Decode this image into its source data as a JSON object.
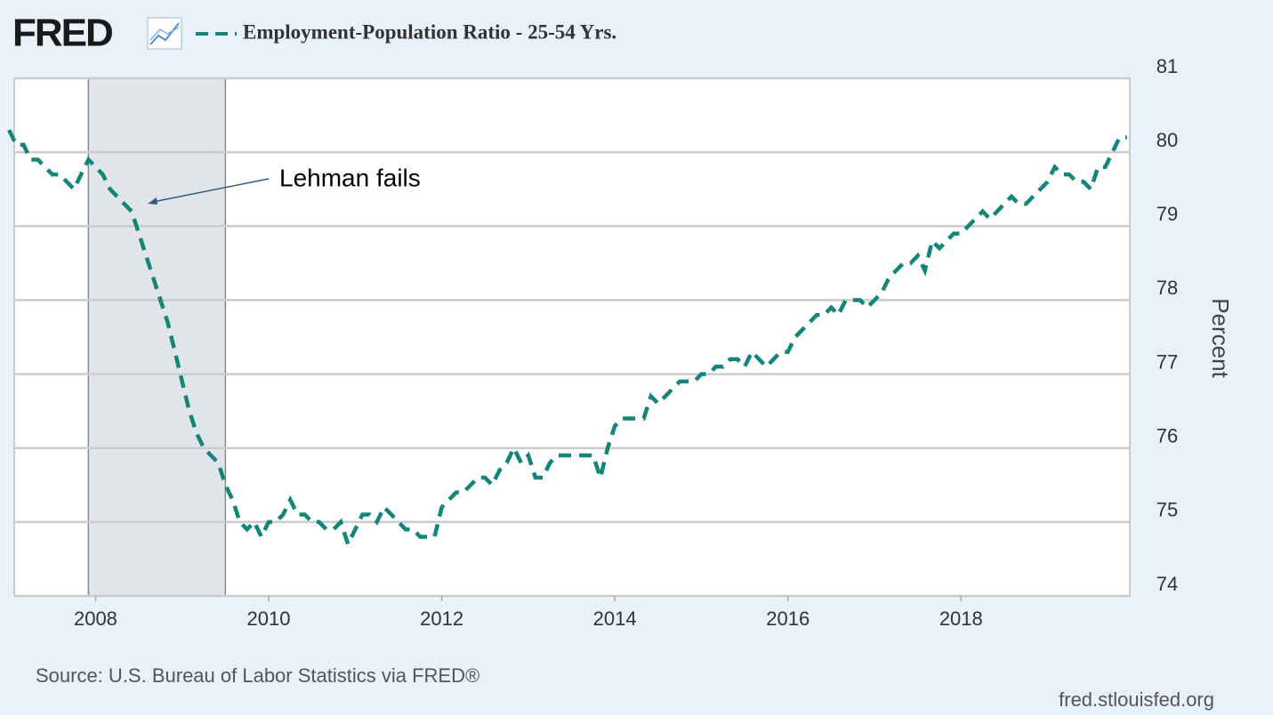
{
  "chart_data": {
    "type": "line",
    "logo": "FRED",
    "y_label": "Percent",
    "annotation": "Lehman fails",
    "source": "Source: U.S. Bureau of Labor Statistics via FRED®",
    "site": "fred.stlouisfed.org",
    "xlim": [
      2007.06,
      2019.95
    ],
    "xticks": [
      2008,
      2010,
      2012,
      2014,
      2016,
      2018
    ],
    "ylim": [
      74,
      81
    ],
    "yticks": [
      74,
      75,
      76,
      77,
      78,
      79,
      80,
      81
    ],
    "grid": true,
    "recessions": [
      {
        "start": 2007.917,
        "end": 2009.5
      }
    ],
    "x": [
      2007.0,
      2007.083,
      2007.167,
      2007.25,
      2007.333,
      2007.417,
      2007.5,
      2007.583,
      2007.667,
      2007.75,
      2007.833,
      2007.917,
      2008.0,
      2008.083,
      2008.167,
      2008.25,
      2008.333,
      2008.417,
      2008.5,
      2008.583,
      2008.667,
      2008.75,
      2008.833,
      2008.917,
      2009.0,
      2009.083,
      2009.167,
      2009.25,
      2009.333,
      2009.417,
      2009.5,
      2009.583,
      2009.667,
      2009.75,
      2009.833,
      2009.917,
      2010.0,
      2010.083,
      2010.167,
      2010.25,
      2010.333,
      2010.417,
      2010.5,
      2010.583,
      2010.667,
      2010.75,
      2010.833,
      2010.917,
      2011.0,
      2011.083,
      2011.167,
      2011.25,
      2011.333,
      2011.417,
      2011.5,
      2011.583,
      2011.667,
      2011.75,
      2011.833,
      2011.917,
      2012.0,
      2012.083,
      2012.167,
      2012.25,
      2012.333,
      2012.417,
      2012.5,
      2012.583,
      2012.667,
      2012.75,
      2012.833,
      2012.917,
      2013.0,
      2013.083,
      2013.167,
      2013.25,
      2013.333,
      2013.417,
      2013.5,
      2013.583,
      2013.667,
      2013.75,
      2013.833,
      2013.917,
      2014.0,
      2014.083,
      2014.167,
      2014.25,
      2014.333,
      2014.417,
      2014.5,
      2014.583,
      2014.667,
      2014.75,
      2014.833,
      2014.917,
      2015.0,
      2015.083,
      2015.167,
      2015.25,
      2015.333,
      2015.417,
      2015.5,
      2015.583,
      2015.667,
      2015.75,
      2015.833,
      2015.917,
      2016.0,
      2016.083,
      2016.167,
      2016.25,
      2016.333,
      2016.417,
      2016.5,
      2016.583,
      2016.667,
      2016.75,
      2016.833,
      2016.917,
      2017.0,
      2017.083,
      2017.167,
      2017.25,
      2017.333,
      2017.417,
      2017.5,
      2017.583,
      2017.667,
      2017.75,
      2017.833,
      2017.917,
      2018.0,
      2018.083,
      2018.167,
      2018.25,
      2018.333,
      2018.417,
      2018.5,
      2018.583,
      2018.667,
      2018.75,
      2018.833,
      2018.917,
      2019.0,
      2019.083,
      2019.167,
      2019.25,
      2019.333,
      2019.417,
      2019.5,
      2019.583,
      2019.667,
      2019.75,
      2019.833,
      2019.917
    ],
    "series": [
      {
        "name": "Employment-Population Ratio - 25-54 Yrs.",
        "color": "#14857a",
        "values": [
          80.3,
          80.1,
          80.1,
          79.9,
          79.9,
          79.8,
          79.7,
          79.7,
          79.6,
          79.5,
          79.7,
          79.9,
          79.8,
          79.7,
          79.5,
          79.4,
          79.3,
          79.2,
          78.9,
          78.6,
          78.3,
          78.0,
          77.7,
          77.3,
          76.9,
          76.5,
          76.2,
          76.0,
          75.9,
          75.8,
          75.5,
          75.3,
          75.0,
          74.9,
          75.0,
          74.8,
          75.0,
          75.0,
          75.1,
          75.3,
          75.1,
          75.1,
          75.0,
          75.0,
          74.9,
          74.9,
          75.0,
          74.7,
          74.9,
          75.1,
          75.1,
          75.0,
          75.2,
          75.1,
          75.0,
          74.9,
          74.9,
          74.8,
          74.8,
          74.8,
          75.2,
          75.3,
          75.4,
          75.4,
          75.5,
          75.6,
          75.6,
          75.5,
          75.7,
          75.8,
          76.0,
          75.8,
          75.9,
          75.6,
          75.6,
          75.8,
          75.9,
          75.9,
          75.9,
          75.9,
          75.9,
          75.9,
          75.6,
          76.0,
          76.3,
          76.4,
          76.4,
          76.4,
          76.4,
          76.7,
          76.6,
          76.7,
          76.8,
          76.9,
          76.9,
          76.9,
          77.0,
          77.0,
          77.1,
          77.1,
          77.2,
          77.2,
          77.1,
          77.3,
          77.2,
          77.1,
          77.2,
          77.3,
          77.3,
          77.5,
          77.6,
          77.7,
          77.8,
          77.8,
          77.9,
          77.8,
          78.0,
          78.0,
          78.0,
          77.9,
          78.0,
          78.1,
          78.3,
          78.4,
          78.5,
          78.5,
          78.6,
          78.4,
          78.8,
          78.7,
          78.8,
          78.9,
          78.9,
          79.0,
          79.1,
          79.2,
          79.1,
          79.2,
          79.3,
          79.4,
          79.3,
          79.3,
          79.4,
          79.5,
          79.6,
          79.8,
          79.7,
          79.7,
          79.6,
          79.6,
          79.5,
          79.8,
          79.8,
          80.0,
          80.2,
          80.2
        ]
      }
    ]
  }
}
